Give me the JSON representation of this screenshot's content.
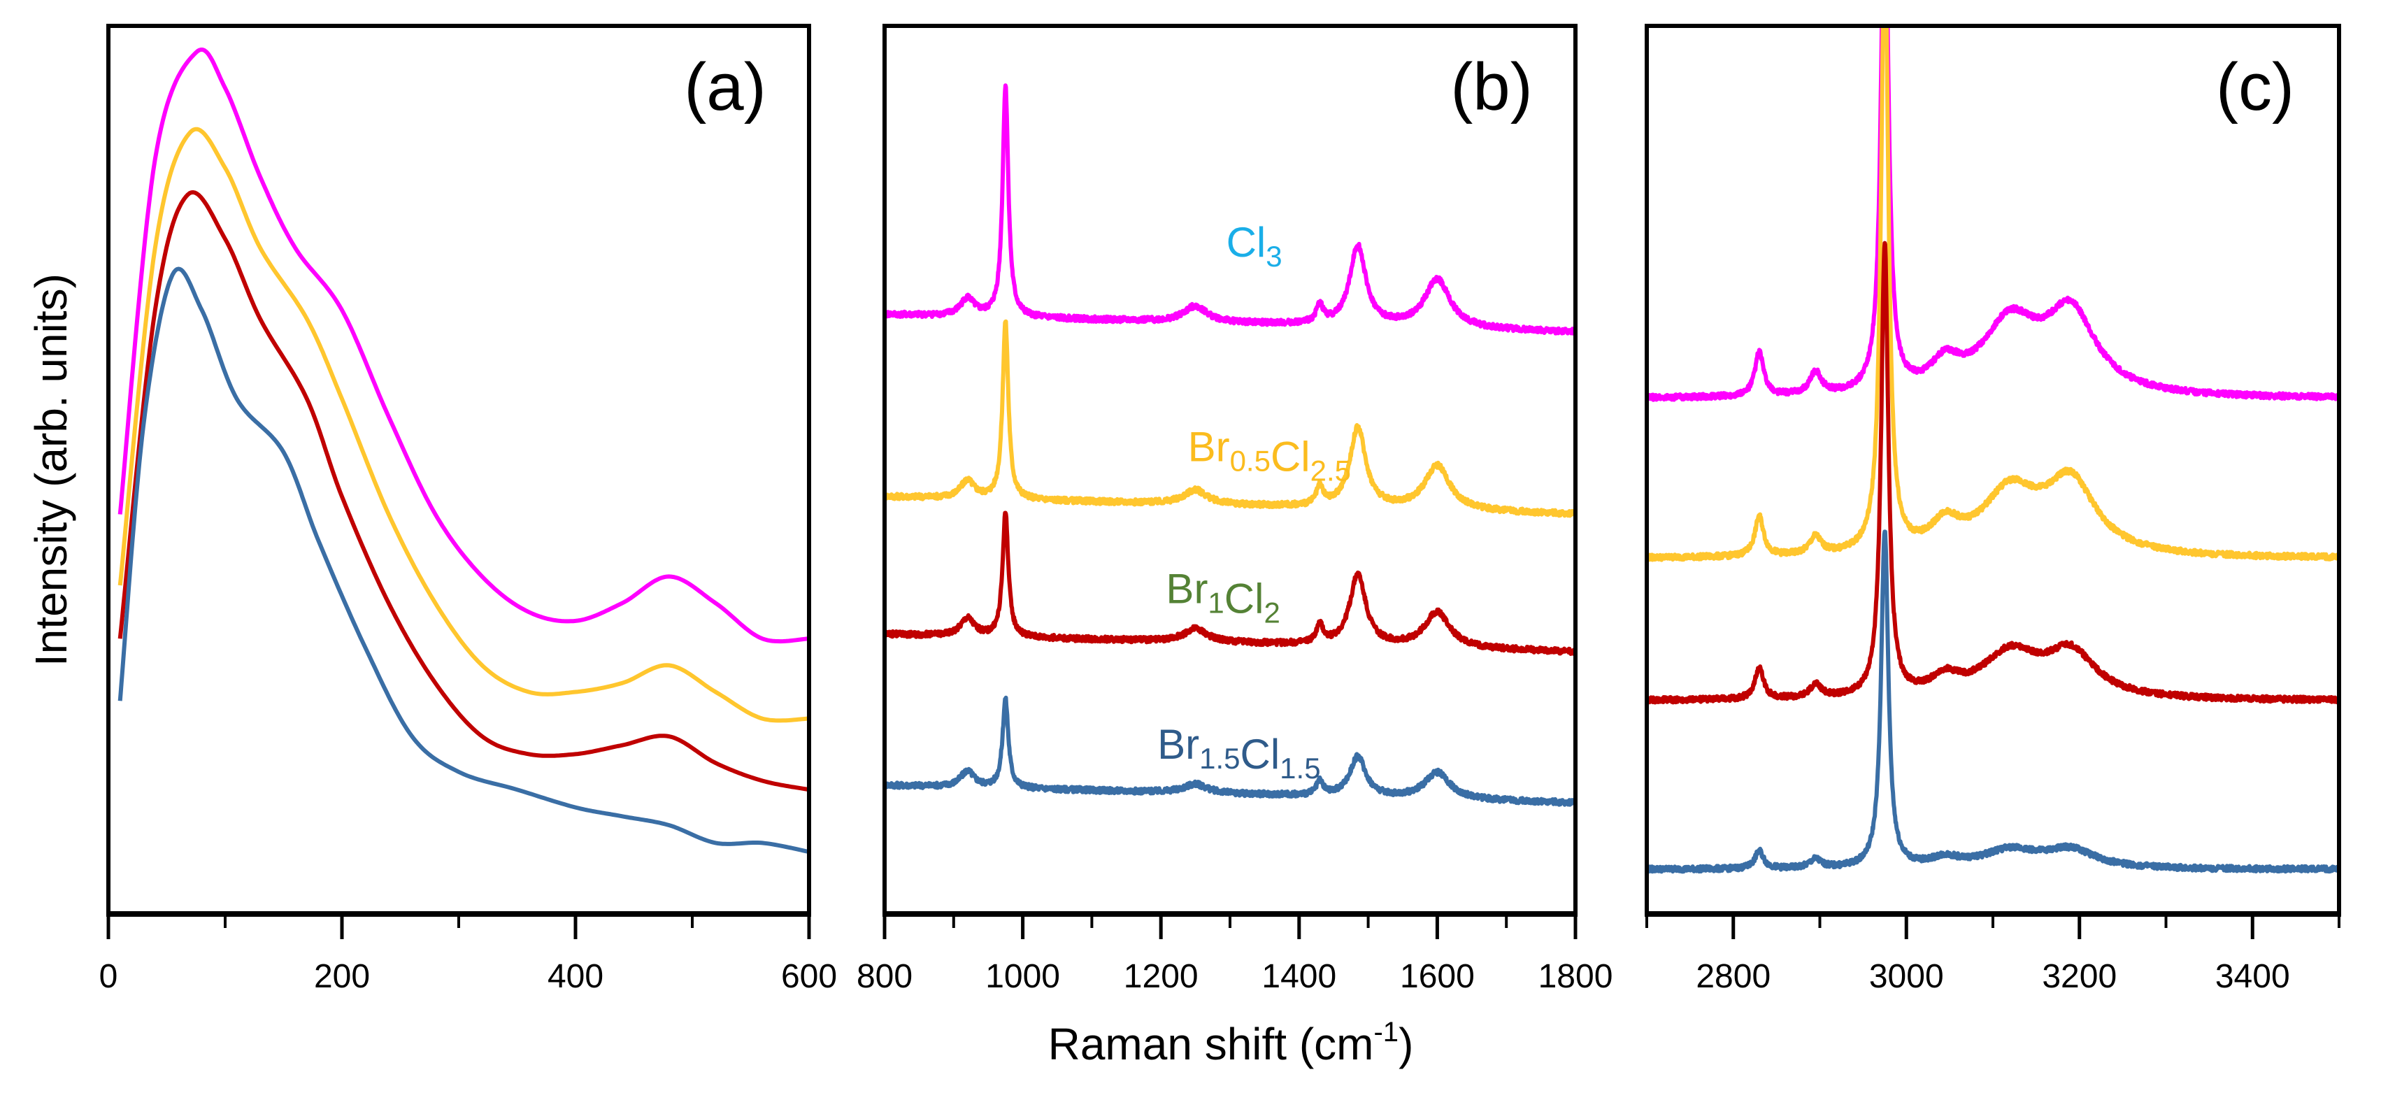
{
  "chart_data": {
    "type": "line",
    "xlabel": "Raman shift (cm",
    "xlabel_sup": "-1",
    "xlabel_end": ")",
    "ylabel": "Intensity (arb. units)",
    "colors": {
      "Cl3": "#ff00ff",
      "Br0.5Cl2.5": "#ffc62e",
      "Br1Cl2": "#c00000",
      "Br1.5Cl1.5": "#3a6ea5"
    },
    "label_colors": {
      "Cl3": "#1aaee8",
      "Br0.5Cl2.5": "#fbbc1e",
      "Br1Cl2": "#548235",
      "Br1.5Cl1.5": "#2f5b8a"
    },
    "panels": [
      {
        "letter": "(a)",
        "xlim": [
          0,
          600
        ],
        "ylim": [
          0,
          100
        ],
        "ticks_major": [
          0,
          200,
          400,
          600
        ],
        "tick_labels": [
          "0",
          "200",
          "400",
          "600"
        ],
        "ticks_minor": [
          100,
          300,
          500
        ],
        "mode": "points",
        "series": [
          {
            "name": "Cl3",
            "x": [
              10,
              40,
              75,
              100,
              130,
              160,
              200,
              240,
              280,
              320,
              360,
              400,
              440,
              480,
              520,
              560,
              600
            ],
            "y": [
              45,
              85,
              97,
              93,
              83,
              75,
              68,
              56,
              45,
              38,
              34,
              33,
              35,
              38,
              35,
              31,
              31
            ]
          },
          {
            "name": "Br0.5Cl2.5",
            "x": [
              10,
              40,
              70,
              100,
              130,
              170,
              200,
              240,
              280,
              320,
              360,
              400,
              440,
              480,
              520,
              560,
              600
            ],
            "y": [
              37,
              75,
              88,
              84,
              75,
              67,
              58,
              45,
              35,
              28,
              25,
              25,
              26,
              28,
              25,
              22,
              22
            ]
          },
          {
            "name": "Br1Cl2",
            "x": [
              10,
              40,
              68,
              100,
              130,
              170,
              200,
              240,
              280,
              320,
              360,
              400,
              440,
              480,
              520,
              560,
              600
            ],
            "y": [
              31,
              68,
              81,
              76,
              67,
              58,
              47,
              35,
              26,
              20,
              18,
              18,
              19,
              20,
              17,
              15,
              14
            ]
          },
          {
            "name": "Br1.5Cl1.5",
            "x": [
              10,
              30,
              55,
              80,
              110,
              150,
              180,
              220,
              260,
              300,
              350,
              400,
              440,
              480,
              520,
              560,
              600
            ],
            "y": [
              24,
              55,
              72,
              68,
              58,
              52,
              42,
              30,
              20,
              16,
              14,
              12,
              11,
              10,
              8,
              8,
              7
            ]
          }
        ]
      },
      {
        "letter": "(b)",
        "xlim": [
          800,
          1800
        ],
        "ylim": [
          0,
          100
        ],
        "ticks_major": [
          800,
          1000,
          1200,
          1400,
          1600,
          1800
        ],
        "tick_labels": [
          "800",
          "1000",
          "1200",
          "1400",
          "1600",
          "1800"
        ],
        "ticks_minor": [
          900,
          1100,
          1300,
          1500,
          1700
        ],
        "mode": "peaks",
        "series": [
          {
            "name": "Cl3",
            "baseline": [
              67.5,
              65.5
            ],
            "peaks": [
              [
                920,
                2,
                12
              ],
              [
                975,
                26,
                5
              ],
              [
                1250,
                1.8,
                20
              ],
              [
                1430,
                2,
                6
              ],
              [
                1485,
                9,
                14
              ],
              [
                1600,
                5.5,
                22
              ]
            ]
          },
          {
            "name": "Br0.5Cl2.5",
            "baseline": [
              47,
              45
            ],
            "peaks": [
              [
                920,
                2,
                12
              ],
              [
                975,
                20,
                5
              ],
              [
                1250,
                1.6,
                20
              ],
              [
                1430,
                2,
                6
              ],
              [
                1485,
                9,
                14
              ],
              [
                1600,
                5,
                22
              ]
            ]
          },
          {
            "name": "Br1Cl2",
            "baseline": [
              31.5,
              29.5
            ],
            "peaks": [
              [
                920,
                2,
                12
              ],
              [
                975,
                14,
                5
              ],
              [
                1250,
                1.5,
                20
              ],
              [
                1430,
                2,
                6
              ],
              [
                1485,
                8,
                14
              ],
              [
                1600,
                4,
                22
              ]
            ]
          },
          {
            "name": "Br1.5Cl1.5",
            "baseline": [
              14.5,
              12.5
            ],
            "peaks": [
              [
                920,
                1.8,
                12
              ],
              [
                975,
                10,
                5
              ],
              [
                1250,
                1,
                20
              ],
              [
                1430,
                1.5,
                6
              ],
              [
                1485,
                4.5,
                14
              ],
              [
                1600,
                3,
                22
              ]
            ]
          }
        ],
        "labels": [
          {
            "key": "Cl3",
            "x": 1335,
            "y": 74,
            "parts": [
              {
                "t": "Cl",
                "sub": "3"
              }
            ]
          },
          {
            "key": "Br0.5Cl2.5",
            "x": 1357,
            "y": 51,
            "parts": [
              {
                "t": "Br",
                "sub": "0.5"
              },
              {
                "t": "Cl",
                "sub": "2.5"
              }
            ]
          },
          {
            "key": "Br1Cl2",
            "x": 1290,
            "y": 35,
            "parts": [
              {
                "t": "Br",
                "sub": "1"
              },
              {
                "t": "Cl",
                "sub": "2"
              }
            ]
          },
          {
            "key": "Br1.5Cl1.5",
            "x": 1313,
            "y": 17.5,
            "parts": [
              {
                "t": "Br",
                "sub": "1.5"
              },
              {
                "t": "Cl",
                "sub": "1.5"
              }
            ]
          }
        ]
      },
      {
        "letter": "(c)",
        "xlim": [
          2700,
          3500
        ],
        "ylim": [
          0,
          100
        ],
        "ticks_major": [
          2800,
          3000,
          3200,
          3400
        ],
        "tick_labels": [
          "2800",
          "3000",
          "3200",
          "3400"
        ],
        "ticks_minor": [
          2700,
          2900,
          3100,
          3300,
          3500
        ],
        "mode": "peaks",
        "series": [
          {
            "name": "Cl3",
            "baseline": [
              58,
              58
            ],
            "peaks": [
              [
                2830,
                5,
                6
              ],
              [
                2895,
                2.5,
                8
              ],
              [
                2975,
                60,
                5
              ],
              [
                3045,
                3,
                20
              ],
              [
                3120,
                8,
                40
              ],
              [
                3190,
                9,
                35
              ]
            ]
          },
          {
            "name": "Br0.5Cl2.5",
            "baseline": [
              40,
              40
            ],
            "peaks": [
              [
                2830,
                4.5,
                6
              ],
              [
                2895,
                2,
                8
              ],
              [
                2975,
                70,
                5
              ],
              [
                3045,
                3,
                20
              ],
              [
                3120,
                7,
                40
              ],
              [
                3190,
                8,
                35
              ]
            ]
          },
          {
            "name": "Br1Cl2",
            "baseline": [
              24,
              24
            ],
            "peaks": [
              [
                2830,
                3.5,
                6
              ],
              [
                2895,
                1.5,
                8
              ],
              [
                2975,
                51,
                5
              ],
              [
                3045,
                2,
                20
              ],
              [
                3120,
                5,
                40
              ],
              [
                3190,
                5,
                35
              ]
            ]
          },
          {
            "name": "Br1.5Cl1.5",
            "baseline": [
              5,
              5
            ],
            "peaks": [
              [
                2830,
                2,
                6
              ],
              [
                2895,
                1,
                8
              ],
              [
                2975,
                38,
                5
              ],
              [
                3045,
                1,
                20
              ],
              [
                3120,
                2,
                40
              ],
              [
                3190,
                2,
                35
              ]
            ]
          }
        ]
      }
    ]
  }
}
